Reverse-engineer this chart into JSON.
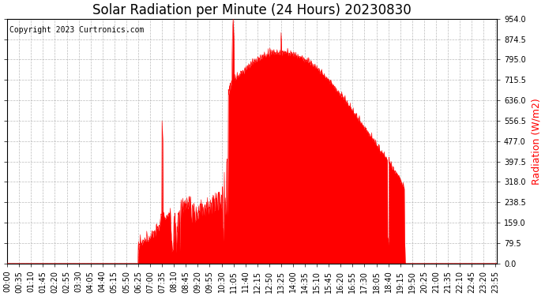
{
  "title": "Solar Radiation per Minute (24 Hours) 20230830",
  "ylabel": "Radiation (W/m2)",
  "ylabel_color": "#ff0000",
  "copyright_text": "Copyright 2023 Curtronics.com",
  "copyright_color": "#000000",
  "bg_color": "#ffffff",
  "plot_bg_color": "#ffffff",
  "fill_color": "#ff0000",
  "line_color": "#ff0000",
  "grid_color": "#aaaaaa",
  "baseline_color": "#ff0000",
  "ylim": [
    0.0,
    954.0
  ],
  "yticks": [
    0.0,
    79.5,
    159.0,
    238.5,
    318.0,
    397.5,
    477.0,
    556.5,
    636.0,
    715.5,
    795.0,
    874.5,
    954.0
  ],
  "title_fontsize": 12,
  "tick_fontsize": 7,
  "ylabel_fontsize": 9,
  "copyright_fontsize": 7,
  "figsize": [
    6.9,
    3.75
  ],
  "dpi": 100
}
